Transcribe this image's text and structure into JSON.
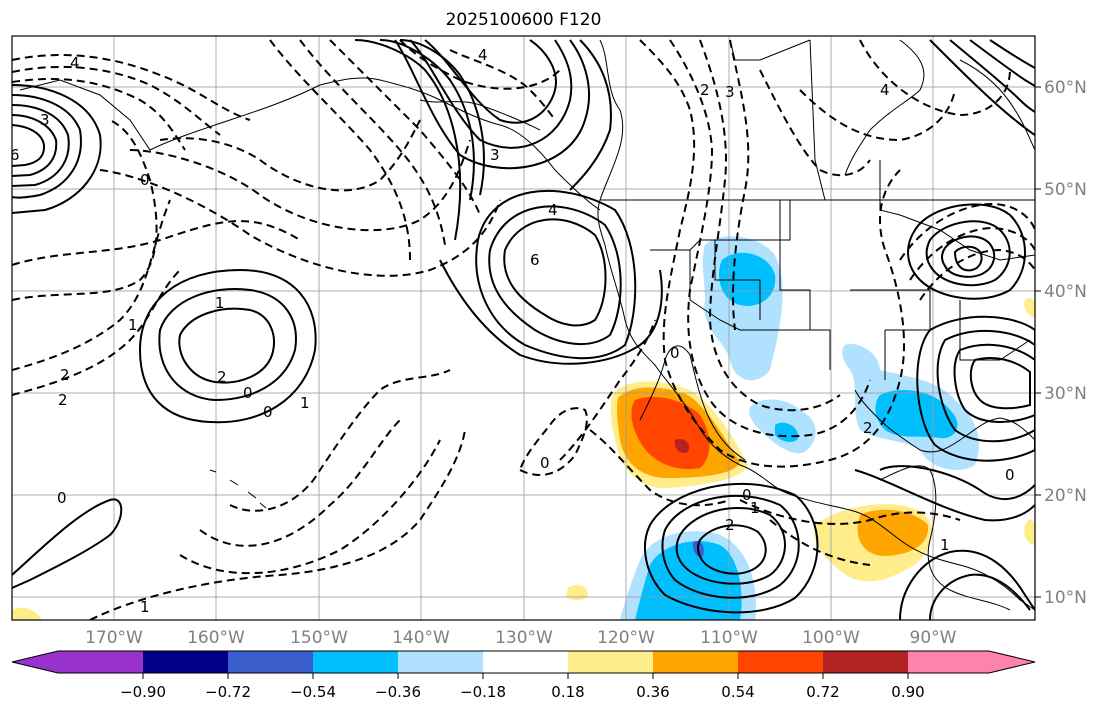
{
  "title": "2025100600 F120",
  "map": {
    "lon_labels": [
      "170°W",
      "160°W",
      "150°W",
      "140°W",
      "130°W",
      "120°W",
      "110°W",
      "100°W",
      "90°W"
    ],
    "lat_labels": [
      "60°N",
      "50°N",
      "40°N",
      "30°N",
      "20°N",
      "10°N"
    ],
    "contour_labels_solid": [
      "1",
      "2",
      "2",
      "1",
      "3",
      "6",
      "4",
      "6",
      "4",
      "2",
      "1",
      "2",
      "2",
      "1",
      "0",
      "0"
    ],
    "contour_labels_dashed": [
      "4",
      "2",
      "1",
      "0",
      "1",
      "2",
      "2",
      "0",
      "0",
      "2",
      "3",
      "0",
      "3",
      "4",
      "1",
      "0",
      "0"
    ]
  },
  "colorbar": {
    "colors": [
      "#9932CC",
      "#00008B",
      "#3A5FCD",
      "#00BFFF",
      "#B0E2FF",
      "#FFFFFF",
      "#FFEC8B",
      "#FFA500",
      "#FF4500",
      "#B22222",
      "#FF82AB"
    ],
    "tick_labels": [
      "−0.90",
      "−0.72",
      "−0.54",
      "−0.36",
      "−0.18",
      "0.18",
      "0.36",
      "0.54",
      "0.72",
      "0.90"
    ]
  }
}
